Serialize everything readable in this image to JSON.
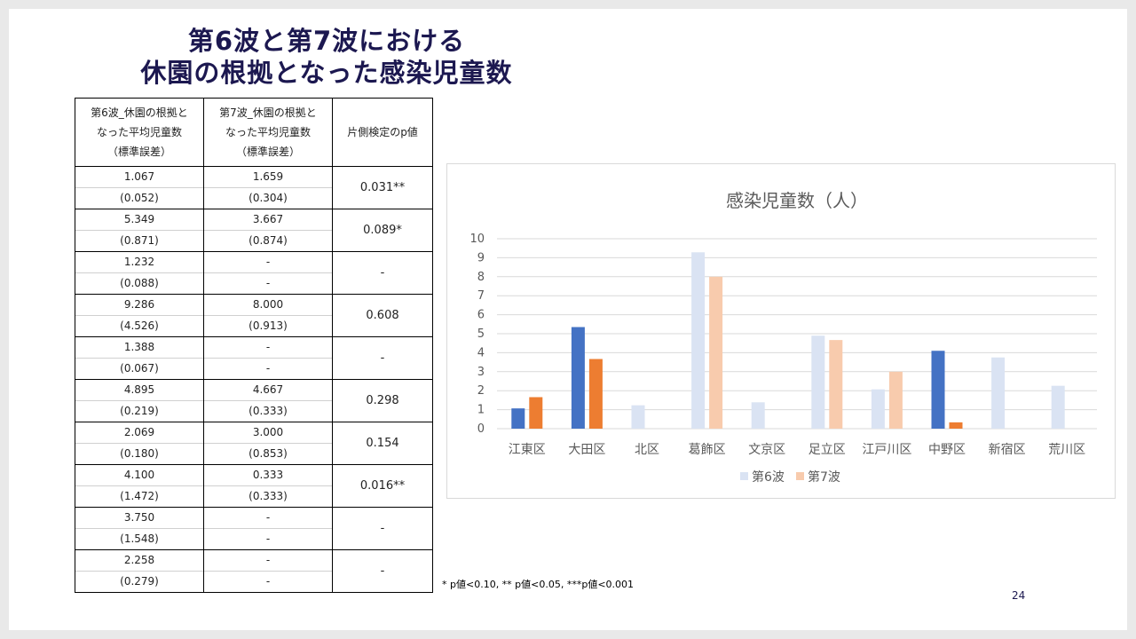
{
  "slide": {
    "title_line1": "第6波と第7波における",
    "title_line2": "休園の根拠となった感染児童数",
    "footnote": "* p値<0.10, ** p値<0.05, ***p値<0.001",
    "page_number": "24"
  },
  "table": {
    "headers": [
      [
        "第6波_休園の根拠と",
        "なった平均児童数",
        "（標準誤差）"
      ],
      [
        "第7波_休園の根拠と",
        "なった平均児童数",
        "（標準誤差）"
      ],
      [
        "片側検定のp値"
      ]
    ],
    "rows": [
      {
        "w6": "1.067",
        "w6_se": "(0.052)",
        "w7": "1.659",
        "w7_se": "(0.304)",
        "p": "0.031**"
      },
      {
        "w6": "5.349",
        "w6_se": "(0.871)",
        "w7": "3.667",
        "w7_se": "(0.874)",
        "p": "0.089*"
      },
      {
        "w6": "1.232",
        "w6_se": "(0.088)",
        "w7": "-",
        "w7_se": "-",
        "p": "-"
      },
      {
        "w6": "9.286",
        "w6_se": "(4.526)",
        "w7": "8.000",
        "w7_se": "(0.913)",
        "p": "0.608"
      },
      {
        "w6": "1.388",
        "w6_se": "(0.067)",
        "w7": "-",
        "w7_se": "-",
        "p": "-"
      },
      {
        "w6": "4.895",
        "w6_se": "(0.219)",
        "w7": "4.667",
        "w7_se": "(0.333)",
        "p": "0.298"
      },
      {
        "w6": "2.069",
        "w6_se": "(0.180)",
        "w7": "3.000",
        "w7_se": "(0.853)",
        "p": "0.154"
      },
      {
        "w6": "4.100",
        "w6_se": "(1.472)",
        "w7": "0.333",
        "w7_se": "(0.333)",
        "p": "0.016**"
      },
      {
        "w6": "3.750",
        "w6_se": "(1.548)",
        "w7": "-",
        "w7_se": "-",
        "p": "-"
      },
      {
        "w6": "2.258",
        "w6_se": "(0.279)",
        "w7": "-",
        "w7_se": "-",
        "p": "-"
      }
    ]
  },
  "colors": {
    "title": "#1c1850",
    "w6_highlight": "#4472c4",
    "w7_highlight": "#ed7d31",
    "w6_muted": "#dae3f3",
    "w7_muted": "#f8cbad",
    "grid": "#d9d9d9",
    "axis_text": "#595959"
  },
  "chart_data": {
    "type": "bar",
    "title": "感染児童数（人）",
    "categories": [
      "江東区",
      "大田区",
      "北区",
      "葛飾区",
      "文京区",
      "足立区",
      "江戸川区",
      "中野区",
      "新宿区",
      "荒川区"
    ],
    "series": [
      {
        "name": "第6波",
        "values": [
          1.067,
          5.349,
          1.232,
          9.286,
          1.388,
          4.895,
          2.069,
          4.1,
          3.75,
          2.258
        ]
      },
      {
        "name": "第7波",
        "values": [
          1.659,
          3.667,
          null,
          8.0,
          null,
          4.667,
          3.0,
          0.333,
          null,
          null
        ]
      }
    ],
    "highlighted_categories": [
      "江東区",
      "大田区",
      "中野区"
    ],
    "ylim": [
      0,
      10
    ],
    "yticks": [
      "0",
      "1",
      "2",
      "3",
      "4",
      "5",
      "6",
      "7",
      "8",
      "9",
      "10"
    ],
    "grid": true,
    "legend_position": "bottom"
  }
}
